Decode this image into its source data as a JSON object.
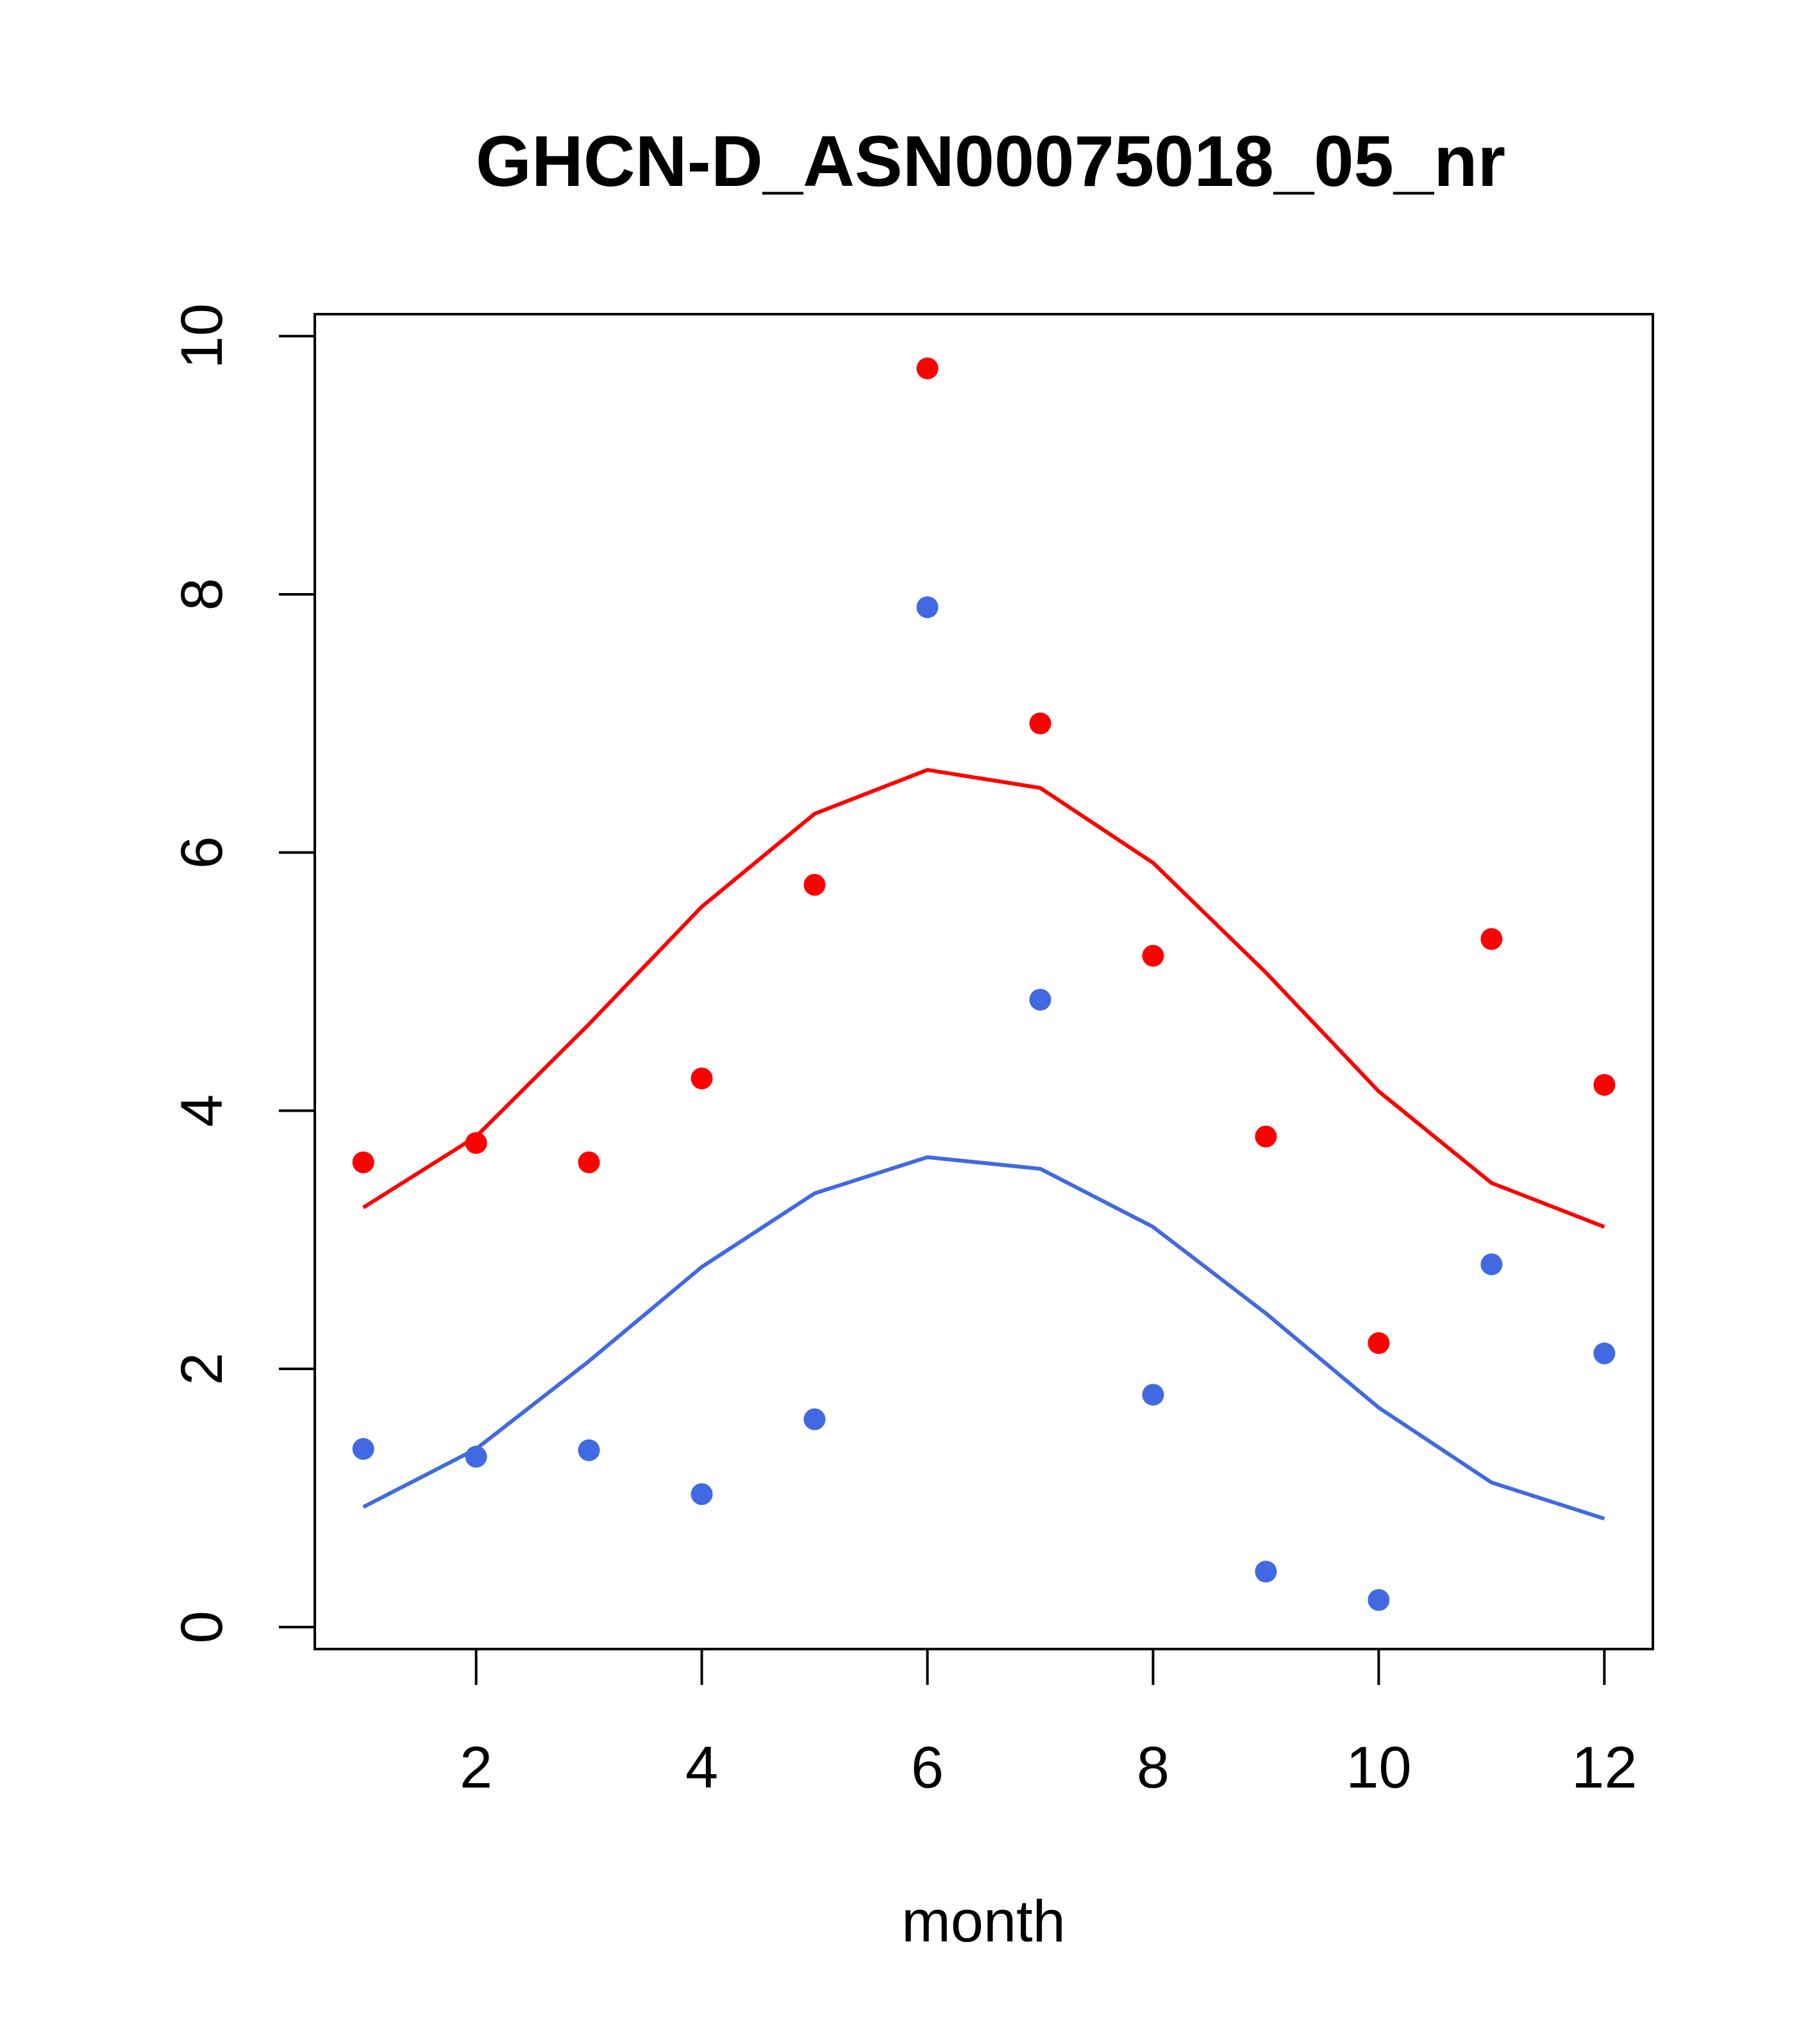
{
  "chart_data": {
    "type": "scatter",
    "title": "GHCN-D_ASN00075018_05_nr",
    "xlabel": "month",
    "ylabel": "",
    "xlim": [
      0.57,
      12.43
    ],
    "ylim": [
      -0.17,
      10.17
    ],
    "x_ticks": [
      2,
      4,
      6,
      8,
      10,
      12
    ],
    "y_ticks": [
      0,
      2,
      4,
      6,
      8,
      10
    ],
    "grid": false,
    "legend": "none",
    "x": [
      1,
      2,
      3,
      4,
      5,
      6,
      7,
      8,
      9,
      10,
      11,
      12
    ],
    "series": [
      {
        "color": "#ff0000",
        "kind": "points",
        "values": [
          3.6,
          3.75,
          3.6,
          4.25,
          5.75,
          9.75,
          7.0,
          5.2,
          3.8,
          2.2,
          5.33,
          4.2
        ]
      },
      {
        "color": "#ff0000",
        "kind": "line",
        "values": [
          3.25,
          3.8,
          4.67,
          5.58,
          6.3,
          6.64,
          6.5,
          5.92,
          5.07,
          4.15,
          3.44,
          3.1
        ]
      },
      {
        "color": "#4169e1",
        "kind": "points",
        "values": [
          1.38,
          1.32,
          1.37,
          1.03,
          1.61,
          7.9,
          4.86,
          1.8,
          0.43,
          0.21,
          2.81,
          2.12
        ]
      },
      {
        "color": "#4169e1",
        "kind": "line",
        "values": [
          0.93,
          1.38,
          2.06,
          2.79,
          3.36,
          3.64,
          3.55,
          3.1,
          2.43,
          1.7,
          1.12,
          0.84
        ]
      }
    ]
  }
}
